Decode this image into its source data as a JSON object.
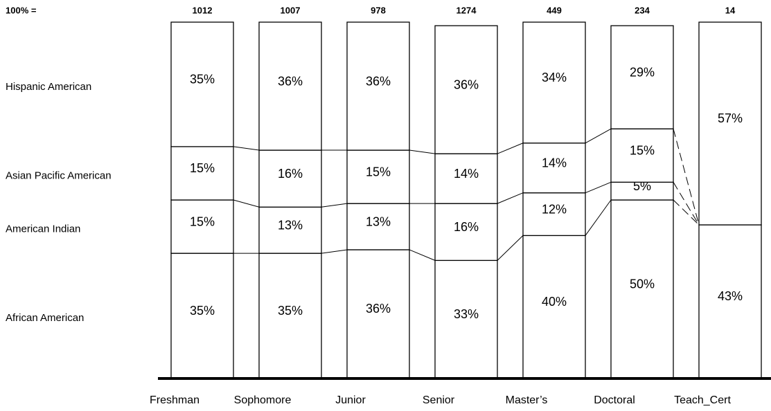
{
  "chart_data": {
    "type": "stacked100",
    "total_label": "100% =",
    "categories": [
      "Freshman",
      "Sophomore",
      "Junior",
      "Senior",
      "Master’s",
      "Doctoral",
      "Teach_Cert"
    ],
    "totals": [
      1012,
      1007,
      978,
      1274,
      449,
      234,
      14
    ],
    "ylim": [
      0,
      100
    ],
    "series": [
      {
        "name": "African American",
        "color": "#ffffff",
        "values": [
          35,
          35,
          36,
          33,
          40,
          50,
          43
        ],
        "value_labels": [
          "35%",
          "35%",
          "36%",
          "33%",
          "40%",
          "50%",
          "43%"
        ]
      },
      {
        "name": "American Indian",
        "color": "#ffffff",
        "values": [
          15,
          13,
          13,
          16,
          12,
          5,
          0
        ],
        "value_labels": [
          "15%",
          "13%",
          "13%",
          "16%",
          "12%",
          "5%",
          "0%"
        ]
      },
      {
        "name": "Asian Pacific American",
        "color": "#ffffff",
        "values": [
          15,
          16,
          15,
          14,
          14,
          15,
          0
        ],
        "value_labels": [
          "15%",
          "16%",
          "15%",
          "14%",
          "14%",
          "15%",
          "0%"
        ]
      },
      {
        "name": "Hispanic American",
        "color": "#ffffff",
        "values": [
          35,
          36,
          36,
          36,
          34,
          29,
          57
        ],
        "value_labels": [
          "35%",
          "36%",
          "36%",
          "36%",
          "34%",
          "29%",
          "57%"
        ]
      }
    ]
  }
}
